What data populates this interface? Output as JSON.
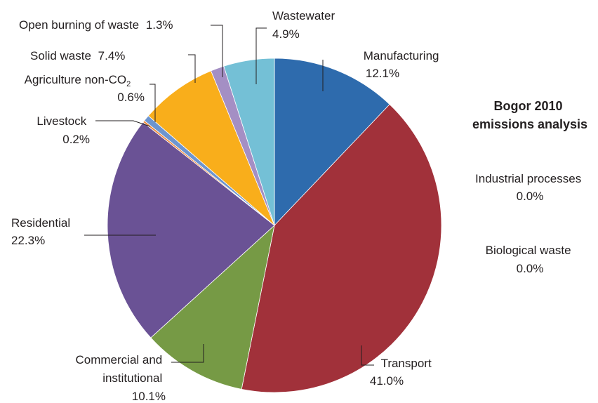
{
  "chart_data": {
    "type": "pie",
    "title_lines": [
      "Bogor 2010",
      "emissions analysis"
    ],
    "slices": [
      {
        "key": "manufacturing",
        "label_lines": [
          "Manufacturing"
        ],
        "value": 12.1,
        "value_text": "12.1%",
        "color": "#2e6bad"
      },
      {
        "key": "transport",
        "label_lines": [
          "Transport"
        ],
        "value": 41.0,
        "value_text": "41.0%",
        "color": "#a1313a"
      },
      {
        "key": "commercial",
        "label_lines": [
          "Commercial and",
          "institutional"
        ],
        "value": 10.1,
        "value_text": "10.1%",
        "color": "#769a45"
      },
      {
        "key": "residential",
        "label_lines": [
          "Residential"
        ],
        "value": 22.3,
        "value_text": "22.3%",
        "color": "#6a5295"
      },
      {
        "key": "livestock",
        "label_lines": [
          "Livestock"
        ],
        "value": 0.2,
        "value_text": "0.2%",
        "color": "#ef8a3d"
      },
      {
        "key": "agriculture",
        "label_main": "Agriculture non-CO",
        "label_sub": "2",
        "value": 0.6,
        "value_text": "0.6%",
        "color": "#6d95cf"
      },
      {
        "key": "solid_waste",
        "label_lines": [
          "Solid waste"
        ],
        "value": 7.4,
        "value_text": "7.4%",
        "color": "#f9ae1b"
      },
      {
        "key": "open_burning",
        "label_lines": [
          "Open burning of waste"
        ],
        "value": 1.3,
        "value_text": "1.3%",
        "color": "#a48fc4"
      },
      {
        "key": "wastewater",
        "label_lines": [
          "Wastewater"
        ],
        "value": 4.9,
        "value_text": "4.9%",
        "color": "#74c0d6"
      }
    ],
    "zero_categories": [
      {
        "label": "Industrial processes",
        "value": 0.0,
        "value_text": "0.0%"
      },
      {
        "label": "Biological waste",
        "value": 0.0,
        "value_text": "0.0%"
      }
    ]
  }
}
